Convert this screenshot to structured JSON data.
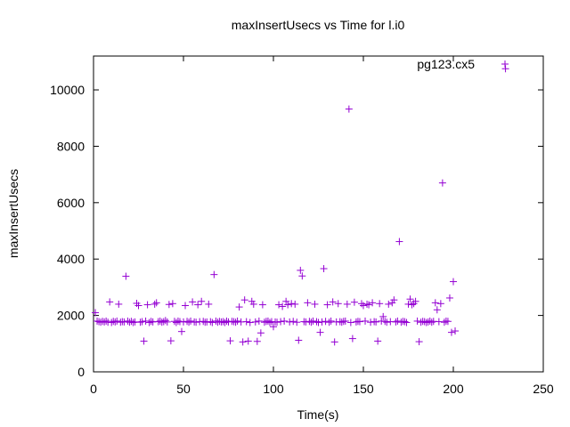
{
  "chart_data": {
    "type": "scatter",
    "title": "maxInsertUsecs vs Time for l.i0",
    "xlabel": "Time(s)",
    "ylabel": "maxInsertUsecs",
    "xlim": [
      0,
      250
    ],
    "ylim": [
      0,
      11200
    ],
    "xticks": [
      "0",
      "50",
      "100",
      "150",
      "200",
      "250"
    ],
    "yticks": [
      "0",
      "2000",
      "4000",
      "6000",
      "8000",
      "10000"
    ],
    "grid": false,
    "legend_position": "top-right",
    "marker": "plus",
    "color": "#9400d3",
    "series": [
      {
        "name": "pg123.cx5",
        "points": [
          [
            1,
            2100
          ],
          [
            2,
            1800
          ],
          [
            3,
            1780
          ],
          [
            4,
            1760
          ],
          [
            5,
            1790
          ],
          [
            6,
            1770
          ],
          [
            7,
            1800
          ],
          [
            8,
            1760
          ],
          [
            9,
            2480
          ],
          [
            10,
            1750
          ],
          [
            11,
            1790
          ],
          [
            12,
            1770
          ],
          [
            13,
            1800
          ],
          [
            14,
            2400
          ],
          [
            15,
            1760
          ],
          [
            16,
            1780
          ],
          [
            17,
            1770
          ],
          [
            18,
            3390
          ],
          [
            19,
            1800
          ],
          [
            20,
            1760
          ],
          [
            21,
            1790
          ],
          [
            22,
            1750
          ],
          [
            23,
            1770
          ],
          [
            24,
            2430
          ],
          [
            25,
            2350
          ],
          [
            26,
            1760
          ],
          [
            27,
            1780
          ],
          [
            28,
            1090
          ],
          [
            29,
            1800
          ],
          [
            30,
            2380
          ],
          [
            31,
            1750
          ],
          [
            32,
            1790
          ],
          [
            33,
            1770
          ],
          [
            34,
            2400
          ],
          [
            35,
            2450
          ],
          [
            36,
            1780
          ],
          [
            37,
            1800
          ],
          [
            38,
            1760
          ],
          [
            39,
            1780
          ],
          [
            40,
            1820
          ],
          [
            41,
            1770
          ],
          [
            42,
            2390
          ],
          [
            43,
            1100
          ],
          [
            44,
            2420
          ],
          [
            45,
            1790
          ],
          [
            46,
            1750
          ],
          [
            47,
            1800
          ],
          [
            48,
            1780
          ],
          [
            49,
            1430
          ],
          [
            50,
            1770
          ],
          [
            51,
            2350
          ],
          [
            52,
            1790
          ],
          [
            53,
            1760
          ],
          [
            54,
            1800
          ],
          [
            55,
            2480
          ],
          [
            56,
            1770
          ],
          [
            57,
            1760
          ],
          [
            58,
            2380
          ],
          [
            59,
            1780
          ],
          [
            60,
            2500
          ],
          [
            61,
            1790
          ],
          [
            62,
            1760
          ],
          [
            63,
            1770
          ],
          [
            64,
            2400
          ],
          [
            65,
            1780
          ],
          [
            66,
            1750
          ],
          [
            67,
            3450
          ],
          [
            68,
            1800
          ],
          [
            69,
            1760
          ],
          [
            70,
            1790
          ],
          [
            71,
            1770
          ],
          [
            72,
            1780
          ],
          [
            73,
            1750
          ],
          [
            74,
            1800
          ],
          [
            75,
            1770
          ],
          [
            76,
            1100
          ],
          [
            77,
            1790
          ],
          [
            78,
            1780
          ],
          [
            79,
            1760
          ],
          [
            80,
            1800
          ],
          [
            81,
            2300
          ],
          [
            82,
            1770
          ],
          [
            83,
            1060
          ],
          [
            84,
            2550
          ],
          [
            85,
            1780
          ],
          [
            86,
            1090
          ],
          [
            87,
            1750
          ],
          [
            88,
            2500
          ],
          [
            89,
            2400
          ],
          [
            90,
            1770
          ],
          [
            91,
            1080
          ],
          [
            92,
            1800
          ],
          [
            93,
            1380
          ],
          [
            94,
            2380
          ],
          [
            95,
            1760
          ],
          [
            96,
            1790
          ],
          [
            97,
            1800
          ],
          [
            98,
            1750
          ],
          [
            99,
            1780
          ],
          [
            100,
            1600
          ],
          [
            101,
            1770
          ],
          [
            102,
            1760
          ],
          [
            103,
            2380
          ],
          [
            104,
            1780
          ],
          [
            105,
            2320
          ],
          [
            106,
            1800
          ],
          [
            107,
            2500
          ],
          [
            108,
            2380
          ],
          [
            109,
            1770
          ],
          [
            110,
            2420
          ],
          [
            111,
            1790
          ],
          [
            112,
            2400
          ],
          [
            113,
            1760
          ],
          [
            114,
            1120
          ],
          [
            115,
            3600
          ],
          [
            116,
            3400
          ],
          [
            117,
            1780
          ],
          [
            118,
            1770
          ],
          [
            119,
            2450
          ],
          [
            120,
            1790
          ],
          [
            121,
            1760
          ],
          [
            122,
            1800
          ],
          [
            123,
            2400
          ],
          [
            124,
            1780
          ],
          [
            125,
            1750
          ],
          [
            126,
            1400
          ],
          [
            127,
            1770
          ],
          [
            128,
            3660
          ],
          [
            129,
            1790
          ],
          [
            130,
            2380
          ],
          [
            131,
            1760
          ],
          [
            132,
            1800
          ],
          [
            133,
            2480
          ],
          [
            134,
            1060
          ],
          [
            135,
            1770
          ],
          [
            136,
            2420
          ],
          [
            137,
            1780
          ],
          [
            138,
            1760
          ],
          [
            139,
            1790
          ],
          [
            140,
            1800
          ],
          [
            141,
            2400
          ],
          [
            142,
            9320
          ],
          [
            143,
            1750
          ],
          [
            144,
            1180
          ],
          [
            145,
            2470
          ],
          [
            146,
            1770
          ],
          [
            147,
            1790
          ],
          [
            148,
            1780
          ],
          [
            149,
            2420
          ],
          [
            150,
            2350
          ],
          [
            151,
            1800
          ],
          [
            152,
            2400
          ],
          [
            153,
            2380
          ],
          [
            154,
            1760
          ],
          [
            155,
            2450
          ],
          [
            156,
            1780
          ],
          [
            157,
            1770
          ],
          [
            158,
            1090
          ],
          [
            159,
            2420
          ],
          [
            160,
            1800
          ],
          [
            161,
            1960
          ],
          [
            162,
            1790
          ],
          [
            163,
            1760
          ],
          [
            164,
            2400
          ],
          [
            165,
            1780
          ],
          [
            166,
            2450
          ],
          [
            167,
            2550
          ],
          [
            168,
            1770
          ],
          [
            169,
            1800
          ],
          [
            170,
            4620
          ],
          [
            171,
            1760
          ],
          [
            172,
            1790
          ],
          [
            173,
            1780
          ],
          [
            174,
            1750
          ],
          [
            175,
            2400
          ],
          [
            176,
            2580
          ],
          [
            177,
            2380
          ],
          [
            178,
            2420
          ],
          [
            179,
            2500
          ],
          [
            180,
            1800
          ],
          [
            181,
            1070
          ],
          [
            182,
            1760
          ],
          [
            183,
            1790
          ],
          [
            184,
            1780
          ],
          [
            185,
            1750
          ],
          [
            186,
            1770
          ],
          [
            187,
            1800
          ],
          [
            188,
            1760
          ],
          [
            189,
            1790
          ],
          [
            190,
            2450
          ],
          [
            191,
            2200
          ],
          [
            192,
            1780
          ],
          [
            193,
            2420
          ],
          [
            194,
            6700
          ],
          [
            195,
            1760
          ],
          [
            196,
            1800
          ],
          [
            197,
            1790
          ],
          [
            198,
            2620
          ],
          [
            199,
            1400
          ],
          [
            200,
            3200
          ],
          [
            201,
            1450
          ],
          [
            229,
            10750
          ]
        ]
      }
    ]
  }
}
